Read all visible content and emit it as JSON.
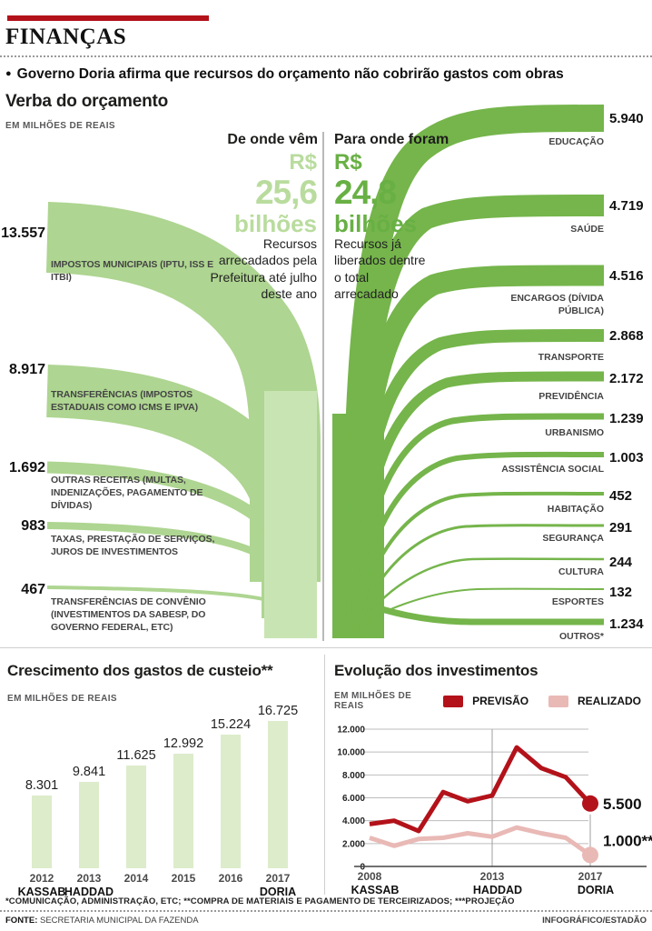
{
  "header": {
    "kicker": "FINANÇAS",
    "bullet": "●",
    "headline": "Governo Doria afirma que recursos do orçamento não cobrirão gastos com obras"
  },
  "colors": {
    "accent_red": "#b3121a",
    "flow_light_green": "#aed591",
    "left_column_green": "#c9e4b3",
    "flow_dark_green": "#75b54b",
    "bar_pale_green": "#ddeccb",
    "total_light_green": "#b9dc9e",
    "total_dark_green": "#68b044",
    "line_previsao_red": "#b3121a",
    "line_realizado_pink": "#e9b9b6"
  },
  "chart_data": [
    {
      "type": "sankey",
      "title": "Verba do orçamento",
      "unit_label": "EM MILHÕES DE REAIS",
      "left_header": "De onde vêm",
      "right_header": "Para onde foram",
      "left_total": {
        "currency": "R$",
        "amount": "25,6",
        "unit": "bilhões",
        "description": "Recursos arrecadados pela Prefeitura até julho deste ano"
      },
      "right_total": {
        "currency": "R$",
        "amount": "24,8",
        "unit": "bilhões",
        "description": "Recursos já liberados dentre o total arrecadado"
      },
      "sources": [
        {
          "value": "13.557",
          "label": "IMPOSTOS MUNICIPAIS (IPTU, ISS E ITBI)"
        },
        {
          "value": "8.917",
          "label": "TRANSFERÊNCIAS (IMPOSTOS ESTADUAIS COMO ICMS E IPVA)"
        },
        {
          "value": "1.692",
          "label": "OUTRAS RECEITAS (MULTAS, INDENIZAÇÕES, PAGAMENTO DE DÍVIDAS)"
        },
        {
          "value": "983",
          "label": "TAXAS, PRESTAÇÃO DE SERVIÇOS, JUROS DE INVESTIMENTOS"
        },
        {
          "value": "467",
          "label": "TRANSFERÊNCIAS DE CONVÊNIO (INVESTIMENTOS DA SABESP, DO GOVERNO FEDERAL, ETC)"
        }
      ],
      "destinations": [
        {
          "value": "5.940",
          "label": "EDUCAÇÃO"
        },
        {
          "value": "4.719",
          "label": "SAÚDE"
        },
        {
          "value": "4.516",
          "label": "ENCARGOS (DÍVIDA PÚBLICA)"
        },
        {
          "value": "2.868",
          "label": "TRANSPORTE"
        },
        {
          "value": "2.172",
          "label": "PREVIDÊNCIA"
        },
        {
          "value": "1.239",
          "label": "URBANISMO"
        },
        {
          "value": "1.003",
          "label": "ASSISTÊNCIA SOCIAL"
        },
        {
          "value": "452",
          "label": "HABITAÇÃO"
        },
        {
          "value": "291",
          "label": "SEGURANÇA"
        },
        {
          "value": "244",
          "label": "CULTURA"
        },
        {
          "value": "132",
          "label": "ESPORTES"
        },
        {
          "value": "1.234",
          "label": "OUTROS*"
        }
      ]
    },
    {
      "type": "bar",
      "title": "Crescimento dos gastos de custeio**",
      "unit_label": "EM MILHÕES DE REAIS",
      "categories": [
        "2012",
        "2013",
        "2014",
        "2015",
        "2016",
        "2017"
      ],
      "mayors": [
        "KASSAB",
        "HADDAD",
        "",
        "",
        "",
        "DORIA"
      ],
      "values": [
        8301,
        9841,
        11625,
        12992,
        15224,
        16725
      ],
      "value_labels": [
        "8.301",
        "9.841",
        "11.625",
        "12.992",
        "15.224",
        "16.725"
      ],
      "ylim": [
        0,
        16725
      ]
    },
    {
      "type": "line",
      "title": "Evolução dos investimentos",
      "unit_label": "EM MILHÕES DE REAIS",
      "x": [
        2008,
        2009,
        2010,
        2011,
        2012,
        2013,
        2014,
        2015,
        2016,
        2017
      ],
      "x_ticks": [
        {
          "year": "2008",
          "mayor": "KASSAB"
        },
        {
          "year": "2013",
          "mayor": "HADDAD"
        },
        {
          "year": "2017",
          "mayor": "DORIA"
        }
      ],
      "y_ticks": [
        "0",
        "2.000",
        "4.000",
        "6.000",
        "8.000",
        "10.000",
        "12.000"
      ],
      "ylim": [
        0,
        12000
      ],
      "grid": true,
      "legend_position": "top",
      "series": [
        {
          "name": "PREVISÃO",
          "color": "#b3121a",
          "values": [
            3700,
            4000,
            3100,
            6500,
            5700,
            6200,
            10400,
            8600,
            7800,
            5500
          ],
          "end_label": "5.500"
        },
        {
          "name": "REALIZADO",
          "color": "#e9b9b6",
          "values": [
            2500,
            1800,
            2400,
            2500,
            2900,
            2600,
            3400,
            2900,
            2500,
            1000
          ],
          "end_label": "1.000***"
        }
      ]
    }
  ],
  "footnote": "*COMUNICAÇÃO, ADMINISTRAÇÃO, ETC; **COMPRA DE MATERIAIS E PAGAMENTO DE TERCEIRIZADOS; ***PROJEÇÃO",
  "footer": {
    "source_label": "FONTE:",
    "source": "SECRETARIA MUNICIPAL DA FAZENDA",
    "credit": "INFOGRÁFICO/ESTADÃO"
  }
}
